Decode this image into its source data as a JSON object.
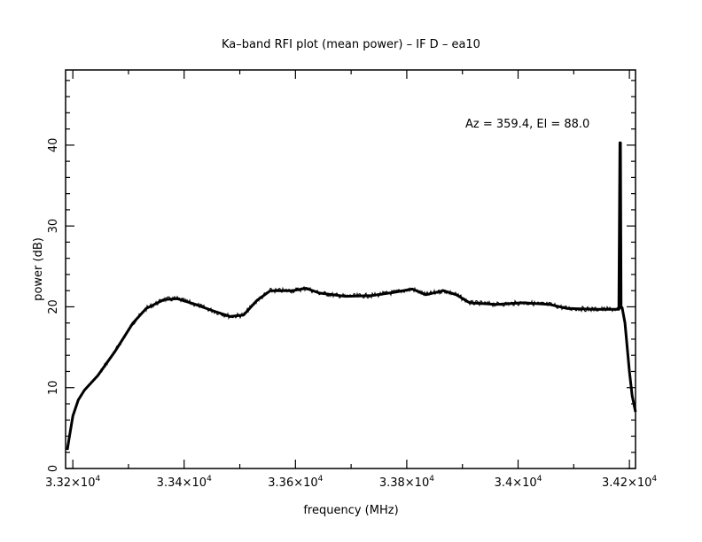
{
  "chart_data": {
    "type": "line",
    "title": "Ka–band RFI plot (mean power) – IF D – ea10",
    "xlabel": "frequency (MHz)",
    "ylabel": "power (dB)",
    "annotation": "Az = 359.4, El = 88.0",
    "xlim": [
      33187,
      34211
    ],
    "ylim": [
      0,
      49.3
    ],
    "grid": false,
    "x_ticks": [
      33200,
      33400,
      33600,
      33800,
      34000,
      34200
    ],
    "x_tick_labels": [
      {
        "mant": "3.32×10",
        "exp": "4"
      },
      {
        "mant": "3.34×10",
        "exp": "4"
      },
      {
        "mant": "3.36×10",
        "exp": "4"
      },
      {
        "mant": "3.38×10",
        "exp": "4"
      },
      {
        "mant": "3.4×10",
        "exp": "4"
      },
      {
        "mant": "3.42×10",
        "exp": "4"
      }
    ],
    "y_ticks": [
      0,
      10,
      20,
      30,
      40
    ],
    "y_tick_labels": [
      "0",
      "10",
      "20",
      "30",
      "40"
    ],
    "series": [
      {
        "name": "mean power",
        "color": "#000000",
        "x": [
          33190,
          33194,
          33200,
          33210,
          33221,
          33245,
          33276,
          33308,
          33332,
          33364,
          33388,
          33420,
          33452,
          33483,
          33507,
          33531,
          33555,
          33595,
          33619,
          33643,
          33690,
          33738,
          33778,
          33810,
          33834,
          33866,
          33889,
          33913,
          33961,
          34009,
          34056,
          34088,
          34136,
          34181,
          34183,
          34184,
          34185,
          34187,
          34192,
          34200,
          34205,
          34211
        ],
        "y": [
          2.3,
          4,
          6.5,
          8.5,
          9.7,
          11.5,
          14.5,
          18,
          19.8,
          20.9,
          21,
          20.3,
          19.5,
          18.8,
          19,
          20.8,
          22,
          22,
          22.3,
          21.7,
          21.3,
          21.4,
          21.8,
          22.2,
          21.5,
          22,
          21.5,
          20.5,
          20.3,
          20.5,
          20.3,
          19.8,
          19.7,
          19.7,
          40.3,
          40.3,
          19.9,
          19.9,
          18,
          12,
          9,
          7
        ]
      }
    ]
  }
}
